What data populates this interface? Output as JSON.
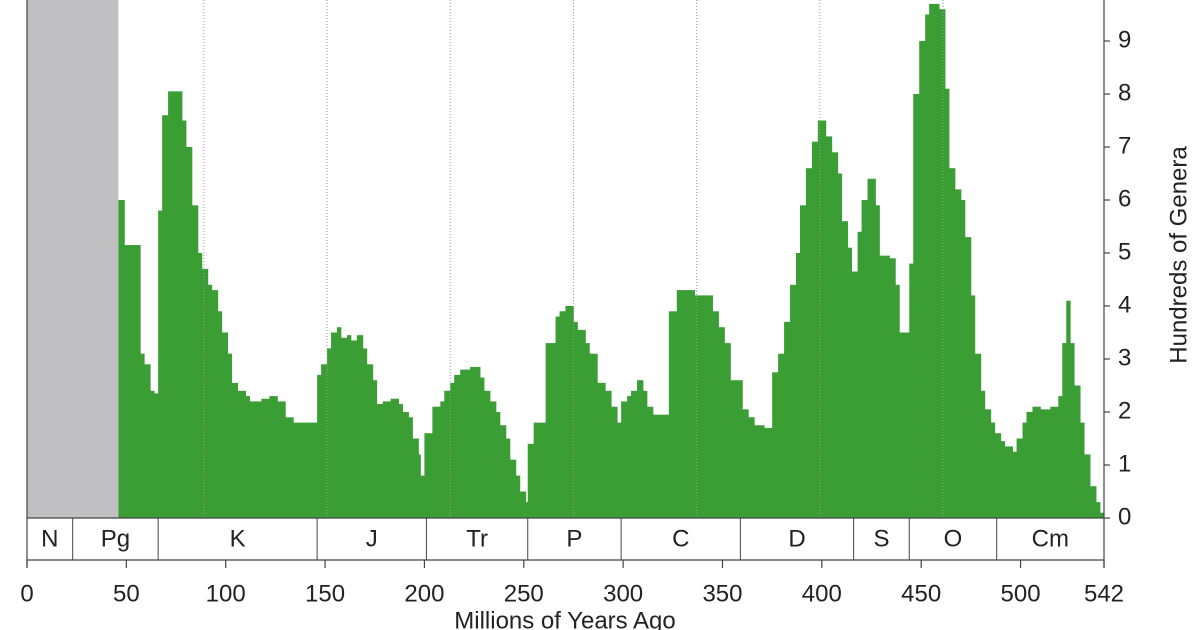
{
  "chart_data": {
    "type": "step",
    "x_label": "Millions of Years Ago",
    "y_label": "Hundreds of Genera",
    "xlim": [
      0,
      542
    ],
    "ylim": [
      0,
      10
    ],
    "xticks": [
      0,
      50,
      100,
      150,
      200,
      250,
      300,
      350,
      400,
      450,
      500,
      542
    ],
    "yticks": [
      0,
      1,
      2,
      3,
      4,
      5,
      6,
      7,
      8,
      9
    ],
    "color": "#3a9e35",
    "shaded_span": [
      0,
      46
    ],
    "shade_color": "#c0c0c2",
    "cycle_lines": [
      89,
      151,
      213,
      275,
      337,
      399,
      461
    ],
    "periods": [
      {
        "label": "N",
        "start": 0,
        "end": 23
      },
      {
        "label": "Pg",
        "start": 23,
        "end": 66
      },
      {
        "label": "K",
        "start": 66,
        "end": 146
      },
      {
        "label": "J",
        "start": 146,
        "end": 201
      },
      {
        "label": "Tr",
        "start": 201,
        "end": 252
      },
      {
        "label": "P",
        "start": 252,
        "end": 299
      },
      {
        "label": "C",
        "start": 299,
        "end": 359
      },
      {
        "label": "D",
        "start": 359,
        "end": 416
      },
      {
        "label": "S",
        "start": 416,
        "end": 444
      },
      {
        "label": "O",
        "start": 444,
        "end": 488
      },
      {
        "label": "Cm",
        "start": 488,
        "end": 542
      }
    ],
    "x": [
      46,
      49,
      57,
      59,
      62,
      64,
      66,
      68,
      71,
      78,
      80,
      83,
      86,
      88,
      91,
      93,
      96,
      98,
      101,
      103,
      106,
      110,
      112,
      118,
      122,
      126,
      130,
      134,
      146,
      148,
      151,
      153,
      156,
      158,
      161,
      163,
      166,
      169,
      171,
      174,
      176,
      179,
      183,
      187,
      189,
      192,
      194,
      197,
      198,
      200,
      204,
      208,
      210,
      213,
      215,
      218,
      223,
      228,
      230,
      233,
      236,
      238,
      241,
      243,
      246,
      248,
      251,
      252,
      255,
      261,
      266,
      268,
      271,
      275,
      277,
      281,
      283,
      287,
      291,
      294,
      297,
      299,
      302,
      304,
      307,
      310,
      312,
      315,
      323,
      327,
      336,
      345,
      348,
      351,
      354,
      360,
      363,
      366,
      371,
      375,
      378,
      381,
      384,
      387,
      389,
      392,
      395,
      398,
      402,
      405,
      408,
      410,
      413,
      415,
      418,
      420,
      423,
      427,
      429,
      434,
      437,
      439,
      444,
      446,
      449,
      452,
      454,
      459,
      462,
      464,
      467,
      470,
      472,
      475,
      477,
      480,
      482,
      485,
      487,
      490,
      492,
      496,
      498,
      501,
      503,
      506,
      510,
      515,
      519,
      521,
      523,
      525,
      527,
      530,
      532,
      535,
      538,
      540
    ],
    "values": [
      6.0,
      5.15,
      3.1,
      2.9,
      2.4,
      2.35,
      5.8,
      7.6,
      8.05,
      7.5,
      7.0,
      5.9,
      5.0,
      4.7,
      4.4,
      4.3,
      3.9,
      3.5,
      3.1,
      2.55,
      2.4,
      2.3,
      2.2,
      2.25,
      2.3,
      2.2,
      1.9,
      1.8,
      2.7,
      2.9,
      3.2,
      3.5,
      3.6,
      3.4,
      3.45,
      3.35,
      3.45,
      3.2,
      2.9,
      2.6,
      2.15,
      2.2,
      2.25,
      2.15,
      2.0,
      1.9,
      1.5,
      1.2,
      0.8,
      1.6,
      2.1,
      2.2,
      2.4,
      2.55,
      2.7,
      2.8,
      2.85,
      2.65,
      2.4,
      2.2,
      2.0,
      1.75,
      1.5,
      1.1,
      0.8,
      0.5,
      0.3,
      1.4,
      1.8,
      3.3,
      3.8,
      3.9,
      4.0,
      3.7,
      3.55,
      3.3,
      3.1,
      2.55,
      2.4,
      2.1,
      1.8,
      2.2,
      2.3,
      2.4,
      2.6,
      2.4,
      2.1,
      1.95,
      3.9,
      4.3,
      4.2,
      3.9,
      3.6,
      3.3,
      2.6,
      2.05,
      1.9,
      1.75,
      1.7,
      2.75,
      3.1,
      3.7,
      4.4,
      5.0,
      5.9,
      6.6,
      7.1,
      7.5,
      7.2,
      6.9,
      6.5,
      5.6,
      5.1,
      4.65,
      5.4,
      6.0,
      6.4,
      5.9,
      4.95,
      4.9,
      4.4,
      3.5,
      4.8,
      8.0,
      9.0,
      9.5,
      9.7,
      9.6,
      8.1,
      6.6,
      6.2,
      6.0,
      5.3,
      4.2,
      3.1,
      2.4,
      2.05,
      1.8,
      1.6,
      1.45,
      1.35,
      1.25,
      1.5,
      1.8,
      2.0,
      2.1,
      2.05,
      2.1,
      2.3,
      3.3,
      4.1,
      3.3,
      2.5,
      1.8,
      1.2,
      0.6,
      0.3,
      0.1
    ]
  }
}
